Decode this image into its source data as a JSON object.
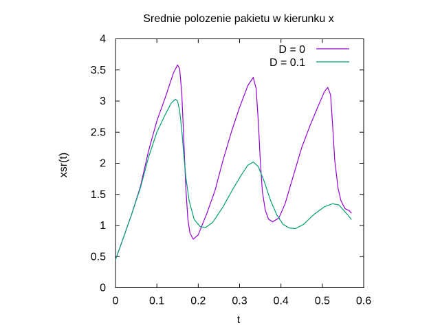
{
  "chart_data": {
    "type": "line",
    "title": "Srednie polozenie pakietu w kierunku x",
    "xlabel": "t",
    "ylabel": "xsr(t)",
    "xlim": [
      0,
      0.6
    ],
    "ylim": [
      0,
      4
    ],
    "xticks": [
      "0",
      "0.1",
      "0.2",
      "0.3",
      "0.4",
      "0.5",
      "0.6"
    ],
    "yticks": [
      "0",
      "0.5",
      "1",
      "1.5",
      "2",
      "2.5",
      "3",
      "3.5",
      "4"
    ],
    "grid": false,
    "legend_position": "top-right",
    "series": [
      {
        "name": "D = 0",
        "color": "#9400d3",
        "points": [
          [
            0.0,
            0.45
          ],
          [
            0.02,
            0.82
          ],
          [
            0.04,
            1.2
          ],
          [
            0.06,
            1.62
          ],
          [
            0.08,
            2.2
          ],
          [
            0.1,
            2.68
          ],
          [
            0.12,
            3.05
          ],
          [
            0.14,
            3.45
          ],
          [
            0.15,
            3.58
          ],
          [
            0.155,
            3.52
          ],
          [
            0.16,
            3.15
          ],
          [
            0.165,
            2.4
          ],
          [
            0.17,
            1.6
          ],
          [
            0.175,
            1.1
          ],
          [
            0.18,
            0.88
          ],
          [
            0.188,
            0.78
          ],
          [
            0.2,
            0.85
          ],
          [
            0.22,
            1.18
          ],
          [
            0.24,
            1.55
          ],
          [
            0.26,
            2.05
          ],
          [
            0.28,
            2.5
          ],
          [
            0.3,
            2.9
          ],
          [
            0.32,
            3.25
          ],
          [
            0.333,
            3.38
          ],
          [
            0.34,
            3.2
          ],
          [
            0.345,
            2.7
          ],
          [
            0.35,
            2.05
          ],
          [
            0.355,
            1.55
          ],
          [
            0.362,
            1.25
          ],
          [
            0.37,
            1.1
          ],
          [
            0.38,
            1.06
          ],
          [
            0.395,
            1.12
          ],
          [
            0.41,
            1.35
          ],
          [
            0.43,
            1.8
          ],
          [
            0.45,
            2.25
          ],
          [
            0.47,
            2.6
          ],
          [
            0.49,
            2.92
          ],
          [
            0.505,
            3.15
          ],
          [
            0.513,
            3.22
          ],
          [
            0.52,
            3.1
          ],
          [
            0.525,
            2.6
          ],
          [
            0.53,
            2.05
          ],
          [
            0.538,
            1.6
          ],
          [
            0.545,
            1.4
          ],
          [
            0.555,
            1.27
          ],
          [
            0.565,
            1.24
          ],
          [
            0.57,
            1.2
          ]
        ]
      },
      {
        "name": "D = 0.1",
        "color": "#009e73",
        "points": [
          [
            0.0,
            0.45
          ],
          [
            0.02,
            0.82
          ],
          [
            0.04,
            1.2
          ],
          [
            0.06,
            1.6
          ],
          [
            0.08,
            2.1
          ],
          [
            0.1,
            2.5
          ],
          [
            0.12,
            2.78
          ],
          [
            0.135,
            2.97
          ],
          [
            0.145,
            3.03
          ],
          [
            0.15,
            3.0
          ],
          [
            0.155,
            2.85
          ],
          [
            0.16,
            2.55
          ],
          [
            0.165,
            2.15
          ],
          [
            0.17,
            1.78
          ],
          [
            0.178,
            1.4
          ],
          [
            0.19,
            1.1
          ],
          [
            0.205,
            0.98
          ],
          [
            0.218,
            0.97
          ],
          [
            0.235,
            1.05
          ],
          [
            0.26,
            1.3
          ],
          [
            0.285,
            1.6
          ],
          [
            0.305,
            1.82
          ],
          [
            0.32,
            1.97
          ],
          [
            0.333,
            2.02
          ],
          [
            0.345,
            1.95
          ],
          [
            0.36,
            1.7
          ],
          [
            0.375,
            1.4
          ],
          [
            0.39,
            1.17
          ],
          [
            0.405,
            1.02
          ],
          [
            0.42,
            0.96
          ],
          [
            0.435,
            0.95
          ],
          [
            0.455,
            1.02
          ],
          [
            0.48,
            1.18
          ],
          [
            0.505,
            1.3
          ],
          [
            0.525,
            1.35
          ],
          [
            0.54,
            1.33
          ],
          [
            0.555,
            1.22
          ],
          [
            0.57,
            1.1
          ]
        ]
      }
    ]
  }
}
